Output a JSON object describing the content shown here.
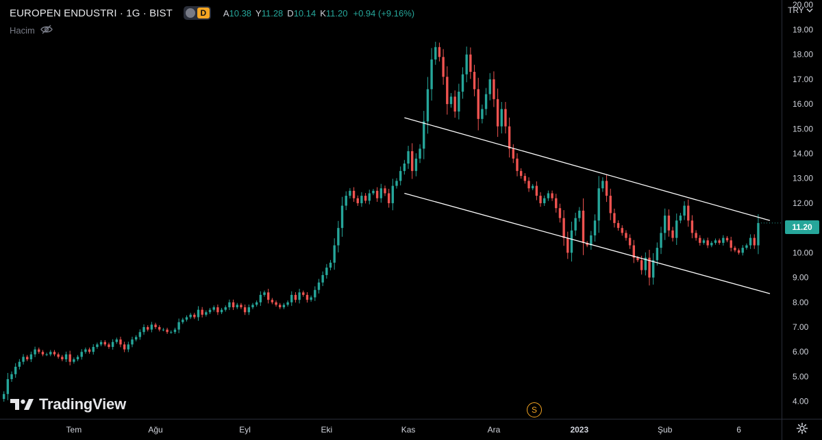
{
  "header": {
    "symbol_title": "EUROPEN ENDUSTRI · 1G · BIST",
    "session_badge": "D",
    "ohlc": {
      "open_label": "A",
      "open": "10.38",
      "high_label": "Y",
      "high": "11.28",
      "low_label": "D",
      "low": "10.14",
      "close_label": "K",
      "close": "11.20",
      "change": "+0.94 (+9.16%)"
    },
    "volume_label": "Hacim"
  },
  "brand": {
    "name": "TradingView"
  },
  "price_axis": {
    "currency": "TRY",
    "last_price_label": "11.20"
  },
  "markers": {
    "split_label": "S"
  },
  "icons": {
    "visibility": "eye-off-icon",
    "logo": "tradingview-logo-icon",
    "dropdown": "chevron-down-icon",
    "settings": "gear-icon"
  },
  "colors": {
    "background": "#000000",
    "up": "#26a69a",
    "down": "#ef5350",
    "trendline": "#ffffff",
    "axis_text": "#d1d4dc",
    "split_marker": "#f5a623"
  },
  "chart_data": {
    "type": "candlestick",
    "x_unit": "trading days since early June 2022",
    "y_ticks": [
      "4.00",
      "5.00",
      "6.00",
      "7.00",
      "8.00",
      "9.00",
      "10.00",
      "11.00",
      "12.00",
      "13.00",
      "14.00",
      "15.00",
      "16.00",
      "17.00",
      "18.00",
      "19.00",
      "20.00"
    ],
    "ylim": [
      3.3,
      20.2
    ],
    "x_ticks": [
      {
        "label": "Tem",
        "i": 18,
        "bold": false
      },
      {
        "label": "Ağu",
        "i": 39,
        "bold": false
      },
      {
        "label": "Eyl",
        "i": 62,
        "bold": false
      },
      {
        "label": "Eki",
        "i": 83,
        "bold": false
      },
      {
        "label": "Kas",
        "i": 104,
        "bold": false
      },
      {
        "label": "Ara",
        "i": 126,
        "bold": false
      },
      {
        "label": "2023",
        "i": 148,
        "bold": true
      },
      {
        "label": "Şub",
        "i": 170,
        "bold": false
      },
      {
        "label": "6",
        "i": 189,
        "bold": false
      }
    ],
    "x_range": [
      -1,
      200
    ],
    "last_price": 11.2,
    "closes": [
      4.3,
      4.9,
      5.1,
      5.4,
      5.6,
      5.8,
      5.7,
      5.9,
      6.1,
      6.0,
      5.9,
      5.9,
      6.0,
      5.9,
      5.8,
      5.7,
      5.9,
      5.6,
      5.7,
      5.8,
      6.0,
      6.1,
      6.0,
      6.2,
      6.3,
      6.4,
      6.3,
      6.2,
      6.4,
      6.5,
      6.3,
      6.1,
      6.3,
      6.5,
      6.6,
      6.8,
      7.0,
      6.9,
      7.1,
      7.0,
      6.9,
      6.9,
      6.8,
      6.8,
      6.9,
      7.2,
      7.3,
      7.4,
      7.5,
      7.4,
      7.7,
      7.5,
      7.6,
      7.7,
      7.8,
      7.6,
      7.7,
      7.8,
      8.0,
      7.8,
      7.9,
      7.8,
      7.6,
      7.8,
      7.9,
      8.0,
      8.3,
      8.4,
      8.1,
      8.0,
      7.9,
      7.8,
      7.9,
      8.0,
      8.3,
      8.1,
      8.4,
      8.3,
      8.1,
      8.2,
      8.5,
      8.8,
      9.1,
      9.4,
      9.6,
      10.3,
      11.0,
      11.9,
      12.3,
      12.5,
      12.2,
      12.0,
      12.3,
      12.1,
      12.4,
      12.5,
      12.2,
      12.6,
      12.4,
      12.0,
      12.7,
      12.9,
      13.3,
      13.6,
      14.1,
      13.3,
      13.8,
      14.2,
      15.3,
      16.6,
      17.8,
      18.3,
      17.9,
      17.1,
      16.0,
      16.3,
      15.7,
      16.5,
      17.2,
      18.0,
      17.3,
      16.6,
      15.4,
      15.8,
      16.4,
      17.0,
      16.2,
      15.1,
      15.8,
      15.1,
      14.2,
      13.8,
      13.3,
      13.1,
      12.9,
      12.6,
      12.7,
      12.3,
      12.0,
      12.2,
      12.4,
      12.2,
      11.8,
      11.4,
      10.6,
      10.0,
      10.9,
      11.4,
      11.7,
      10.4,
      10.3,
      10.7,
      11.3,
      12.6,
      12.9,
      12.3,
      11.6,
      11.2,
      11.0,
      10.8,
      10.6,
      10.3,
      9.8,
      9.7,
      9.3,
      9.8,
      9.0,
      9.7,
      10.2,
      10.8,
      11.5,
      10.9,
      10.6,
      11.3,
      11.5,
      11.9,
      11.3,
      10.8,
      10.6,
      10.4,
      10.5,
      10.3,
      10.4,
      10.5,
      10.4,
      10.6,
      10.5,
      10.2,
      10.1,
      10.0,
      10.2,
      10.3,
      10.6,
      10.3,
      11.2
    ],
    "trendlines": [
      {
        "name": "channel-top",
        "start": [
          103,
          15.45
        ],
        "end": [
          197,
          11.3
        ]
      },
      {
        "name": "channel-bottom",
        "start": [
          103,
          12.4
        ],
        "end": [
          197,
          8.35
        ]
      }
    ]
  }
}
